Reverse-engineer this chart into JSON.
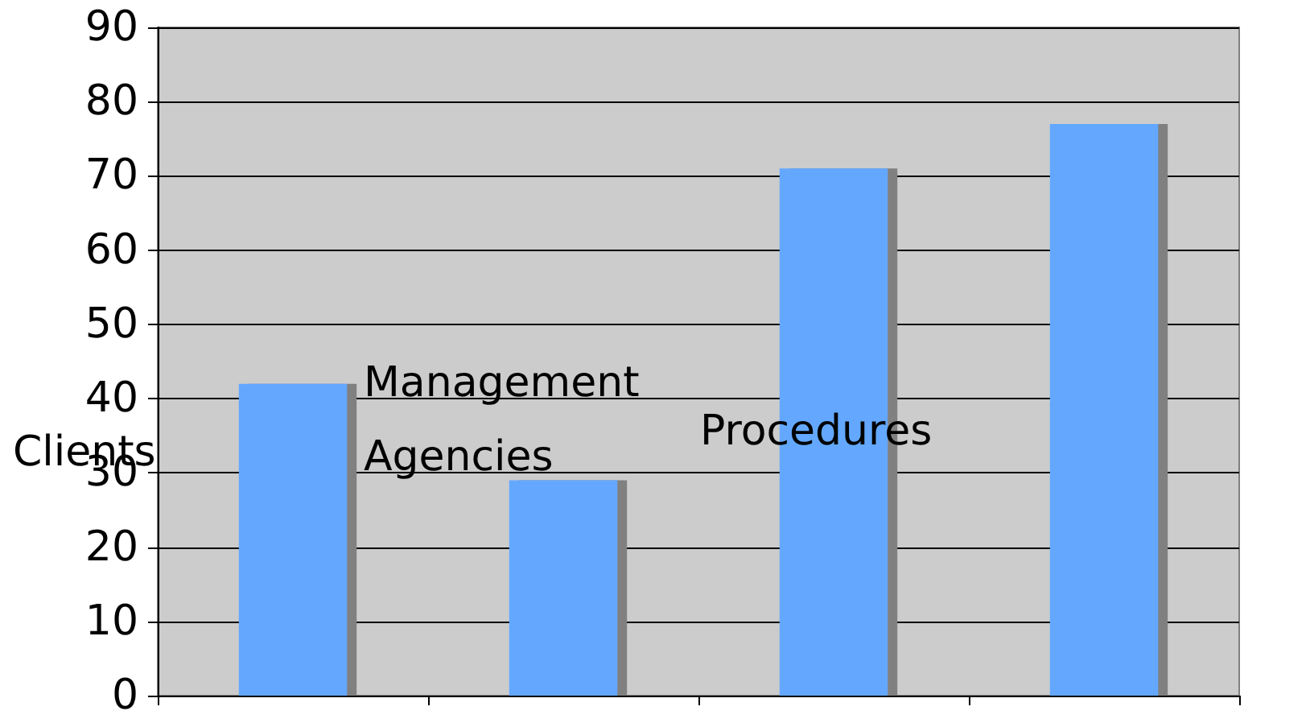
{
  "chart_data": {
    "type": "bar",
    "ylabel": "Clients",
    "categories": [
      null,
      null,
      null,
      null
    ],
    "values": [
      42,
      29,
      71,
      77
    ],
    "color": "#63a8fe",
    "ylim": [
      0,
      90
    ],
    "yticks": [
      0,
      10,
      20,
      30,
      40,
      50,
      60,
      70,
      80,
      90
    ],
    "grid": "y",
    "annotations": [
      "Agencies",
      "Management",
      "Procedures"
    ]
  }
}
